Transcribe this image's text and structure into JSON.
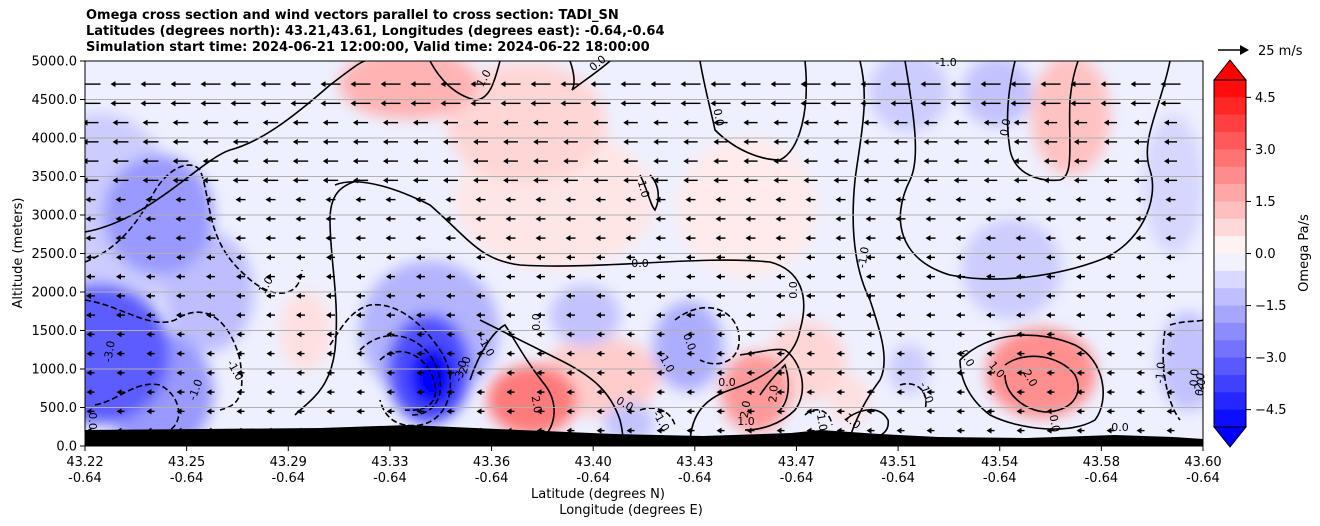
{
  "title_lines": [
    "Omega cross section and wind vectors parallel to cross section: TADI_SN",
    "Latitudes (degrees north): 43.21,43.61, Longitudes (degrees east): -0.64,-0.64",
    "Simulation start time: 2024-06-21 12:00:00, Valid time: 2024-06-22 18:00:00"
  ],
  "chart_data": {
    "type": "heatmap",
    "subtype": "filled contour cross-section with wind vectors",
    "ylabel": "Altitude (meters)",
    "xlabel_lines": [
      "Latitude (degrees N)",
      "Longitude (degrees E)"
    ],
    "ylim": [
      0,
      5000
    ],
    "yticks": [
      "0.0",
      "500.0",
      "1000.0",
      "1500.0",
      "2000.0",
      "2500.0",
      "3000.0",
      "3500.0",
      "4000.0",
      "4500.0",
      "5000.0"
    ],
    "xticks_lat": [
      "43.22",
      "43.25",
      "43.29",
      "43.33",
      "43.36",
      "43.40",
      "43.43",
      "43.47",
      "43.51",
      "43.54",
      "43.58",
      "43.60"
    ],
    "xticks_lon": [
      "-0.64",
      "-0.64",
      "-0.64",
      "-0.64",
      "-0.64",
      "-0.64",
      "-0.64",
      "-0.64",
      "-0.64",
      "-0.64",
      "-0.64",
      "-0.64"
    ],
    "grid": "horizontal",
    "colorbar": {
      "label": "Omega Pa/s",
      "ticks": [
        "4.5",
        "3.0",
        "1.5",
        "0.0",
        "−1.5",
        "−3.0",
        "−4.5"
      ],
      "range": [
        -5,
        5
      ],
      "extend": "both",
      "colormap": "bwr",
      "color_min": "#0000ff",
      "color_mid": "#ffffff",
      "color_max": "#ff0000"
    },
    "quiver_key": "25 m/s",
    "wind_direction": "northward to southward (leftward) at all levels",
    "features": [
      {
        "type": "max",
        "lat": 43.337,
        "alt": 900,
        "value": -5.0
      },
      {
        "type": "max",
        "lat": 43.22,
        "alt": 1100,
        "value": -3.0
      },
      {
        "type": "max",
        "lat": 43.372,
        "alt": 500,
        "value": 2.5
      },
      {
        "type": "max",
        "lat": 43.448,
        "alt": 700,
        "value": 2.0
      },
      {
        "type": "max",
        "lat": 43.543,
        "alt": 900,
        "value": 2.0
      },
      {
        "type": "max",
        "lat": 43.33,
        "alt": 4800,
        "value": 1.5
      }
    ],
    "contour_labels": [
      "1.0",
      "0.0",
      "-1.0",
      "0.0",
      "0.0",
      "1.0",
      "0.0",
      "-1.0",
      "0.0",
      "0.0",
      "0.0",
      "-1.0",
      "0.0",
      "1.0",
      "-1.0",
      "-2.0",
      "-3.0",
      "-3.0",
      "-1.0",
      "-1.0",
      "0.0",
      "0.0",
      "2.0",
      "-1.0",
      "0.0",
      "2.0",
      "2.0",
      "1.0",
      "-1.0",
      "1.0",
      "0.0",
      "-1.0",
      "0.0",
      "1.0",
      "2.0",
      "-1.0",
      "0.0",
      "0.0",
      "-2.0"
    ],
    "terrain": "black filled terrain along bottom"
  }
}
